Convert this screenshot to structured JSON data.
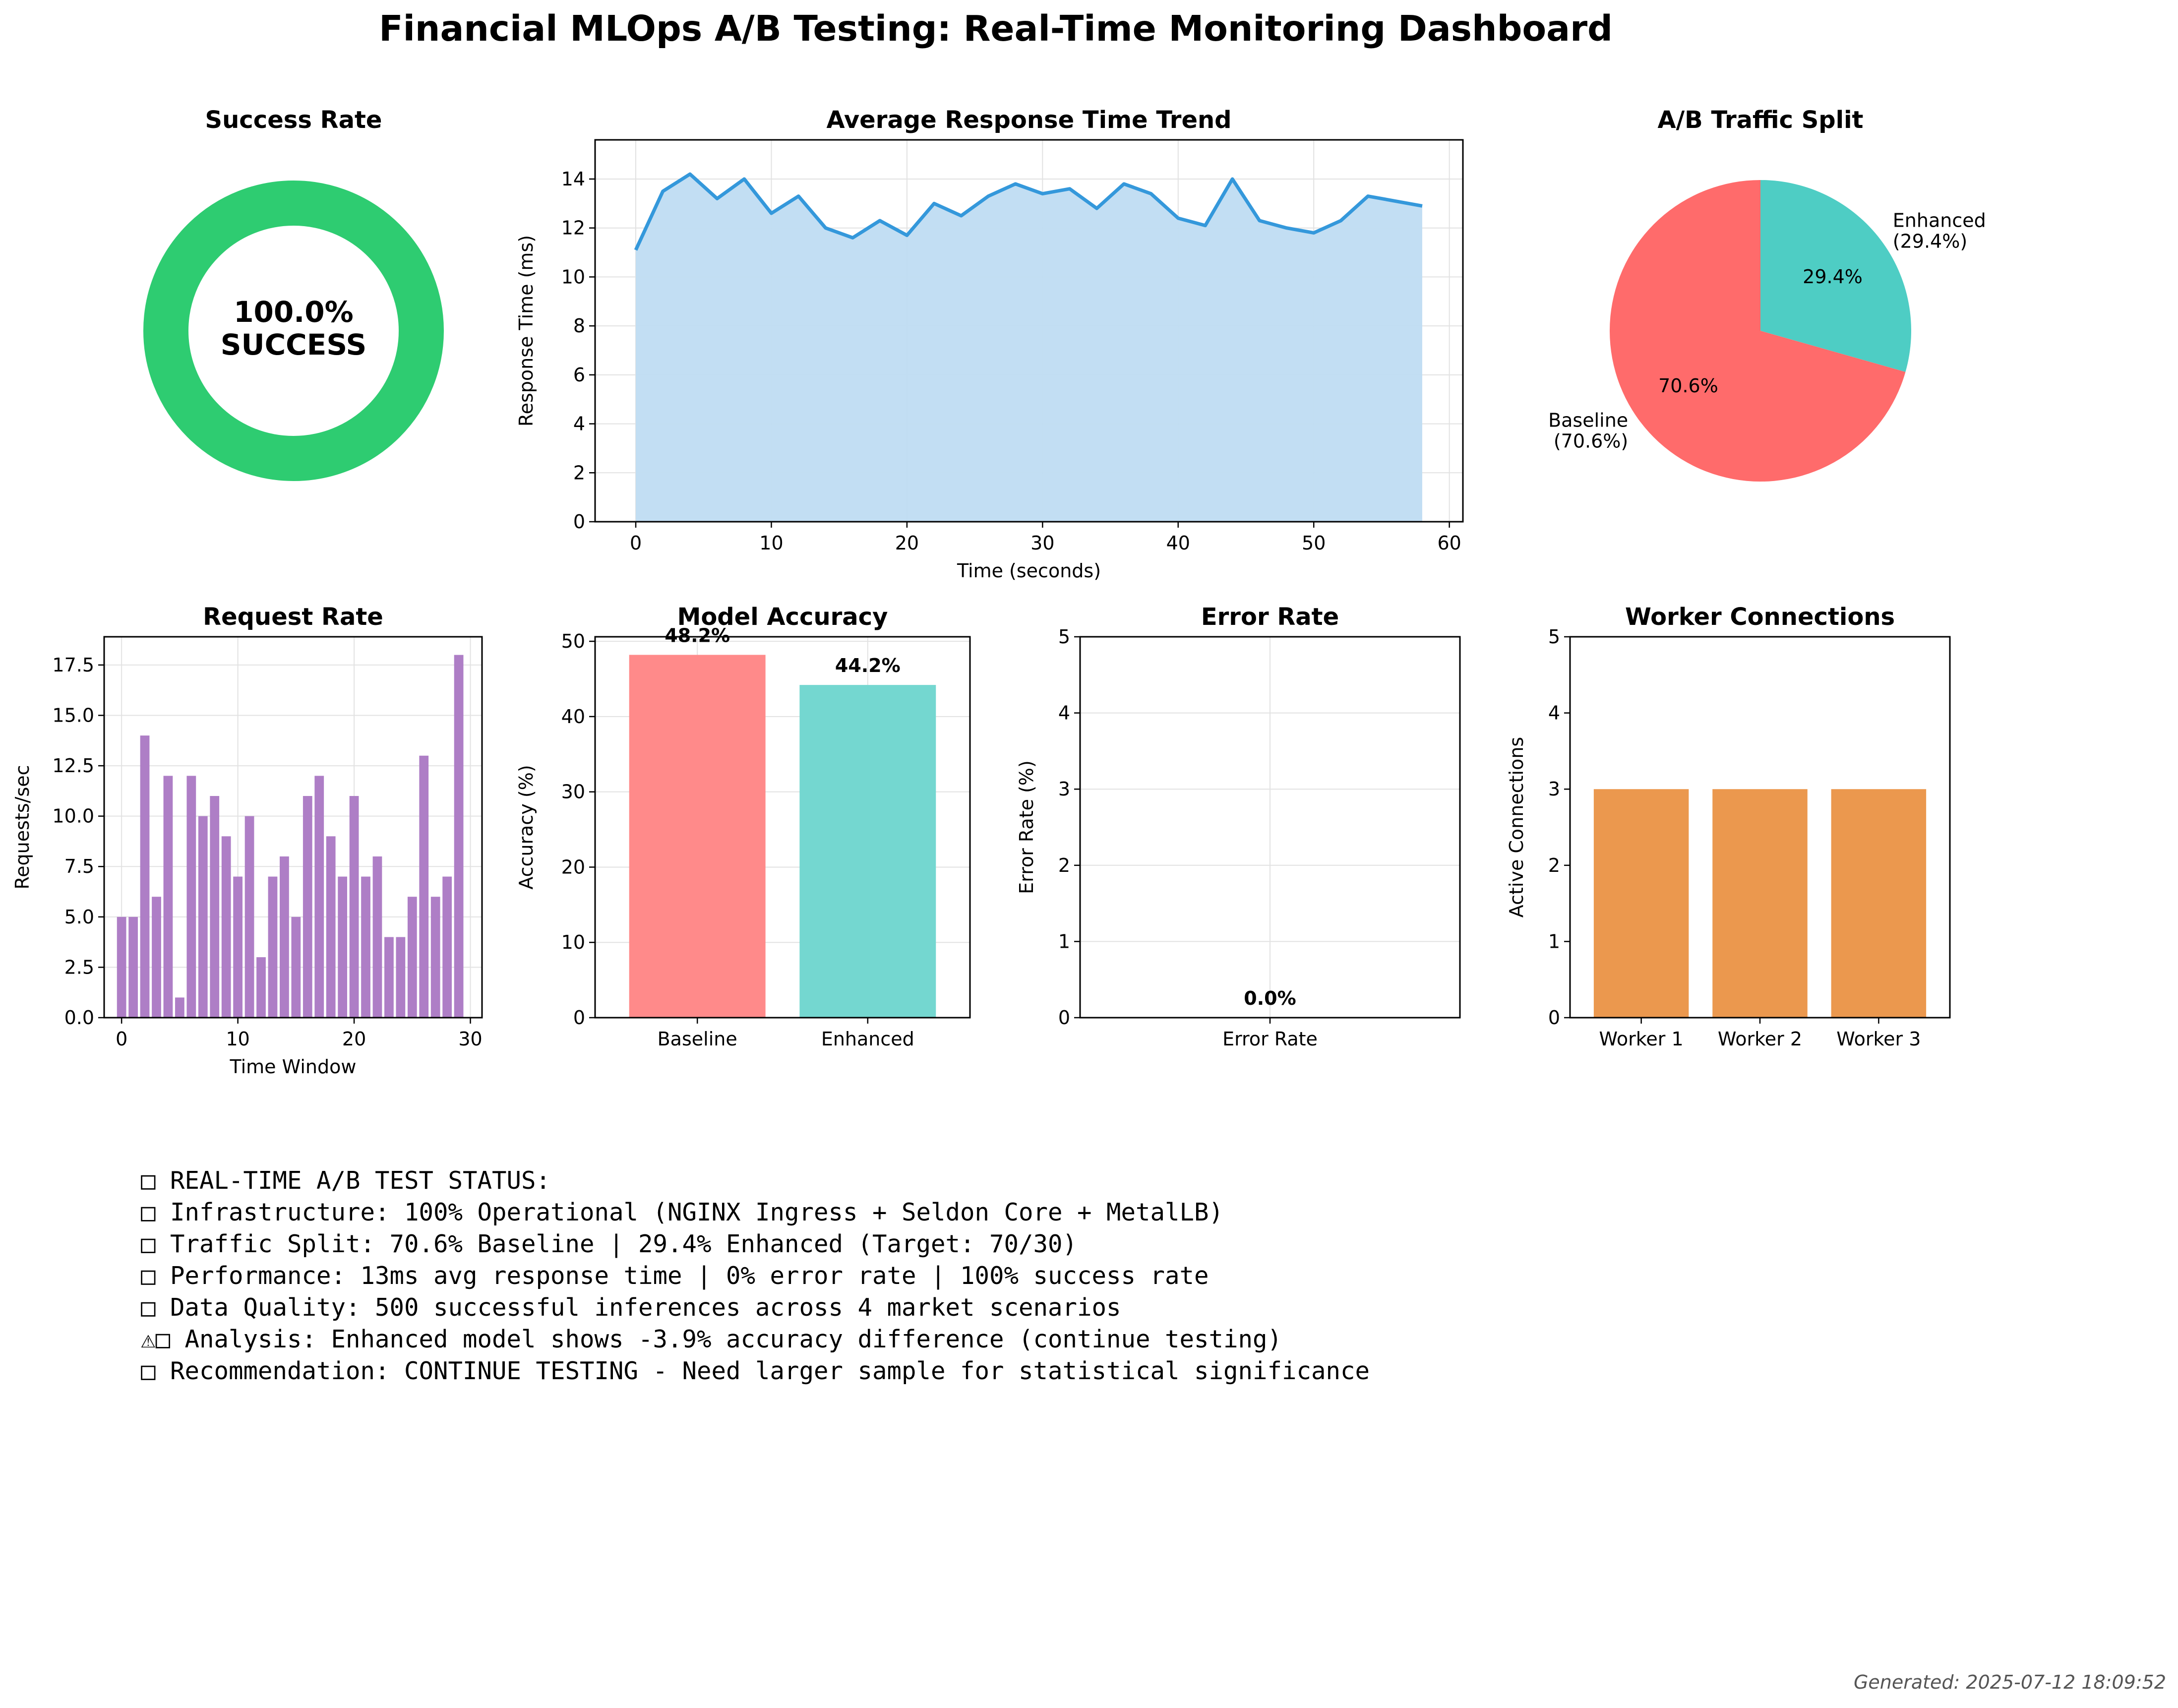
{
  "title": "Financial MLOps A/B Testing: Real-Time Monitoring Dashboard",
  "generated": "Generated: 2025-07-12 18:09:52",
  "colors": {
    "success": "#2ecc71",
    "line": "#3498db",
    "fill": "#bfdcf2",
    "baseline": "#ff6b6b",
    "enhanced": "#4ecdc4",
    "baseline_bar": "#ff8a8a",
    "enhanced_bar": "#74d7d0",
    "request": "#ae7ec6",
    "worker": "#eb984e"
  },
  "chart_data": [
    {
      "type": "donut",
      "title": "Success Rate",
      "value": 100.0,
      "center_label": [
        "100.0%",
        "SUCCESS"
      ]
    },
    {
      "type": "area",
      "title": "Average Response Time Trend",
      "xlabel": "Time (seconds)",
      "ylabel": "Response Time (ms)",
      "xlim": [
        -3,
        61
      ],
      "ylim": [
        0,
        15.6
      ],
      "xticks": [
        0,
        10,
        20,
        30,
        40,
        50,
        60
      ],
      "yticks": [
        0,
        2,
        4,
        6,
        8,
        10,
        12,
        14
      ],
      "grid": true,
      "x": [
        0,
        2,
        4,
        6,
        8,
        10,
        12,
        14,
        16,
        18,
        20,
        22,
        24,
        26,
        28,
        30,
        32,
        34,
        36,
        38,
        40,
        42,
        44,
        46,
        48,
        50,
        52,
        54,
        56,
        58
      ],
      "y": [
        11.1,
        13.5,
        14.2,
        13.2,
        14.0,
        12.6,
        13.3,
        12.0,
        11.6,
        12.3,
        11.7,
        13.0,
        12.5,
        13.3,
        13.8,
        13.4,
        13.6,
        12.8,
        13.8,
        13.4,
        12.4,
        12.1,
        14.0,
        12.3,
        12.0,
        11.8,
        12.3,
        13.3,
        13.1,
        12.9
      ]
    },
    {
      "type": "pie",
      "title": "A/B Traffic Split",
      "slices": [
        {
          "name": "Enhanced",
          "label": "Enhanced\n(29.4%)",
          "value": 29.4,
          "pct": "29.4%",
          "color": "#4ecdc4"
        },
        {
          "name": "Baseline",
          "label": "Baseline\n(70.6%)",
          "value": 70.6,
          "pct": "70.6%",
          "color": "#ff6b6b"
        }
      ]
    },
    {
      "type": "bar",
      "title": "Request Rate",
      "xlabel": "Time Window",
      "ylabel": "Requests/sec",
      "xlim": [
        -1.5,
        31
      ],
      "ylim": [
        0,
        18.9
      ],
      "xticks": [
        0,
        10,
        20,
        30
      ],
      "yticks": [
        0.0,
        2.5,
        5.0,
        7.5,
        10.0,
        12.5,
        15.0,
        17.5
      ],
      "ytick_labels": [
        "0.0",
        "2.5",
        "5.0",
        "7.5",
        "10.0",
        "12.5",
        "15.0",
        "17.5"
      ],
      "grid": true,
      "values": [
        5,
        5,
        14,
        6,
        12,
        1,
        12,
        10,
        11,
        9,
        7,
        10,
        3,
        7,
        8,
        5,
        11,
        12,
        9,
        7,
        11,
        7,
        8,
        4,
        4,
        6,
        13,
        6,
        7,
        18
      ]
    },
    {
      "type": "bar",
      "title": "Model Accuracy",
      "xlabel": "",
      "ylabel": "Accuracy (%)",
      "ylim": [
        0,
        50.6
      ],
      "yticks": [
        0,
        10,
        20,
        30,
        40,
        50
      ],
      "grid": true,
      "categories": [
        "Baseline",
        "Enhanced"
      ],
      "values": [
        48.2,
        44.2
      ],
      "data_labels": [
        "48.2%",
        "44.2%"
      ]
    },
    {
      "type": "bar",
      "title": "Error Rate",
      "xlabel": "",
      "ylabel": "Error Rate (%)",
      "ylim": [
        0,
        5
      ],
      "yticks": [
        0,
        1,
        2,
        3,
        4,
        5
      ],
      "grid": true,
      "categories": [
        "Error Rate"
      ],
      "values": [
        0.0
      ],
      "data_labels": [
        "0.0%"
      ]
    },
    {
      "type": "bar",
      "title": "Worker Connections",
      "xlabel": "",
      "ylabel": "Active Connections",
      "ylim": [
        0,
        5
      ],
      "yticks": [
        0,
        1,
        2,
        3,
        4,
        5
      ],
      "grid": false,
      "categories": [
        "Worker 1",
        "Worker 2",
        "Worker 3"
      ],
      "values": [
        3,
        3,
        3
      ]
    }
  ],
  "status_lines": [
    "□ REAL-TIME A/B TEST STATUS:",
    "□ Infrastructure: 100% Operational (NGINX Ingress + Seldon Core + MetalLB)",
    "□ Traffic Split: 70.6% Baseline | 29.4% Enhanced (Target: 70/30)",
    "□ Performance: 13ms avg response time | 0% error rate | 100% success rate",
    "□ Data Quality: 500 successful inferences across 4 market scenarios",
    "⚠□  Analysis: Enhanced model shows -3.9% accuracy difference (continue testing)",
    "□ Recommendation: CONTINUE TESTING - Need larger sample for statistical significance"
  ]
}
